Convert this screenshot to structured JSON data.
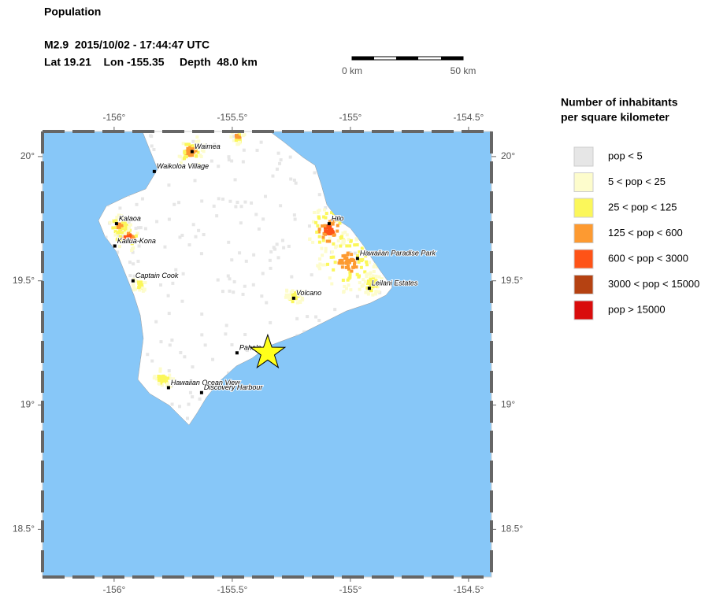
{
  "header": {
    "title": "Population",
    "event_line": "M2.9  2015/10/02 - 17:44:47 UTC",
    "location_line": "Lat 19.21    Lon -155.35     Depth  48.0 km"
  },
  "scale_bar": {
    "start_label": "0 km",
    "end_label": "50 km"
  },
  "map": {
    "xlim": [
      -156.303,
      -154.403
    ],
    "ylim": [
      18.308,
      20.101
    ],
    "xticks": [
      {
        "value": -156,
        "label": "-156°"
      },
      {
        "value": -155.5,
        "label": "-155.5°"
      },
      {
        "value": -155,
        "label": "-155°"
      },
      {
        "value": -154.5,
        "label": "-154.5°"
      }
    ],
    "yticks": [
      {
        "value": 20,
        "label": "20°"
      },
      {
        "value": 19.5,
        "label": "19.5°"
      },
      {
        "value": 19,
        "label": "19°"
      },
      {
        "value": 18.5,
        "label": "18.5°"
      }
    ],
    "ocean_color": "#87c7f8",
    "epicenter": {
      "lon": -155.35,
      "lat": 19.21,
      "color": "#ffff1a"
    },
    "places": [
      {
        "name": "Waimea",
        "lon": -155.67,
        "lat": 20.02
      },
      {
        "name": "Waikoloa Village",
        "lon": -155.83,
        "lat": 19.94
      },
      {
        "name": "Kalaoa",
        "lon": -155.99,
        "lat": 19.73
      },
      {
        "name": "Kailua-Kona",
        "lon": -155.997,
        "lat": 19.64
      },
      {
        "name": "Captain Cook",
        "lon": -155.92,
        "lat": 19.5
      },
      {
        "name": "Hilo",
        "lon": -155.09,
        "lat": 19.73
      },
      {
        "name": "Hawaiian Paradise Park",
        "lon": -154.97,
        "lat": 19.59
      },
      {
        "name": "Leilani Estates",
        "lon": -154.92,
        "lat": 19.47
      },
      {
        "name": "Volcano",
        "lon": -155.24,
        "lat": 19.43
      },
      {
        "name": "Pahala",
        "lon": -155.48,
        "lat": 19.21
      },
      {
        "name": "Hawaiian Ocean View",
        "lon": -155.77,
        "lat": 19.07
      },
      {
        "name": "Discovery Harbour",
        "lon": -155.63,
        "lat": 19.05
      }
    ]
  },
  "legend": {
    "title_lines": [
      "Number of inhabitants",
      "per square kilometer"
    ],
    "entries": [
      {
        "label": "pop < 5",
        "color": "#e6e6e6"
      },
      {
        "label": "5 < pop < 25",
        "color": "#fdfccc"
      },
      {
        "label": "25 < pop < 125",
        "color": "#fbf75a"
      },
      {
        "label": "125 < pop < 600",
        "color": "#fd9a31"
      },
      {
        "label": "600 < pop < 3000",
        "color": "#fe5317"
      },
      {
        "label": "3000 < pop < 15000",
        "color": "#b54212"
      },
      {
        "label": "pop > 15000",
        "color": "#d90c0c"
      }
    ]
  }
}
